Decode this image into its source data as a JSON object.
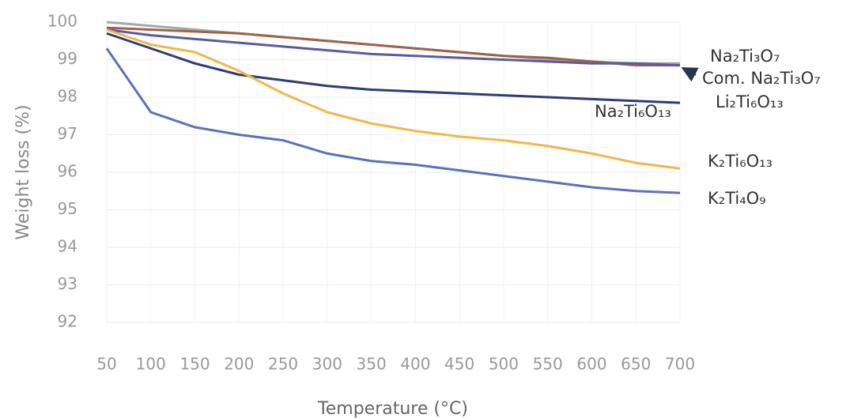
{
  "chart_data": {
    "type": "line",
    "x_label": "Temperature (°C)",
    "y_label": "Weight loss (%)",
    "x": [
      50,
      100,
      150,
      200,
      250,
      300,
      350,
      400,
      450,
      500,
      550,
      600,
      650,
      700
    ],
    "series": [
      {
        "name": "Na₂Ti₃O₇",
        "color": "#a8a8a8",
        "values": [
          100,
          99.9,
          99.8,
          99.7,
          99.6,
          99.5,
          99.4,
          99.3,
          99.2,
          99.1,
          99.0,
          98.95,
          98.9,
          98.9
        ]
      },
      {
        "name": "Com. Na₂Ti₃O₇",
        "color": "#a0614a",
        "values": [
          99.85,
          99.8,
          99.75,
          99.7,
          99.6,
          99.5,
          99.4,
          99.3,
          99.2,
          99.1,
          99.05,
          98.95,
          98.85,
          98.85
        ]
      },
      {
        "name": "Li₂Ti₆O₁₃",
        "color": "#5a5aa0",
        "values": [
          99.8,
          99.65,
          99.55,
          99.45,
          99.35,
          99.25,
          99.15,
          99.1,
          99.05,
          99.0,
          98.95,
          98.9,
          98.9,
          98.85
        ]
      },
      {
        "name": "Na₂Ti₆O₁₃",
        "color": "#2e3c78",
        "values": [
          99.7,
          99.3,
          98.9,
          98.6,
          98.45,
          98.3,
          98.2,
          98.15,
          98.1,
          98.05,
          98.0,
          97.95,
          97.9,
          97.85
        ]
      },
      {
        "name": "K₂Ti₆O₁₃",
        "color": "#f0b848",
        "values": [
          99.8,
          99.4,
          99.2,
          98.7,
          98.1,
          97.6,
          97.3,
          97.1,
          96.95,
          96.85,
          96.7,
          96.5,
          96.25,
          96.1
        ]
      },
      {
        "name": "K₂Ti₄O₉",
        "color": "#5a72b8",
        "values": [
          99.3,
          97.6,
          97.2,
          97.0,
          96.85,
          96.5,
          96.3,
          96.2,
          96.05,
          95.9,
          95.75,
          95.6,
          95.5,
          95.45
        ]
      }
    ],
    "xlim": [
      50,
      700
    ],
    "xticks": [
      50,
      100,
      150,
      200,
      250,
      300,
      350,
      400,
      450,
      500,
      550,
      600,
      650,
      700
    ],
    "ylim": [
      92,
      100
    ],
    "yticks": [
      92,
      93,
      94,
      95,
      96,
      97,
      98,
      99,
      100
    ],
    "grid": true
  }
}
